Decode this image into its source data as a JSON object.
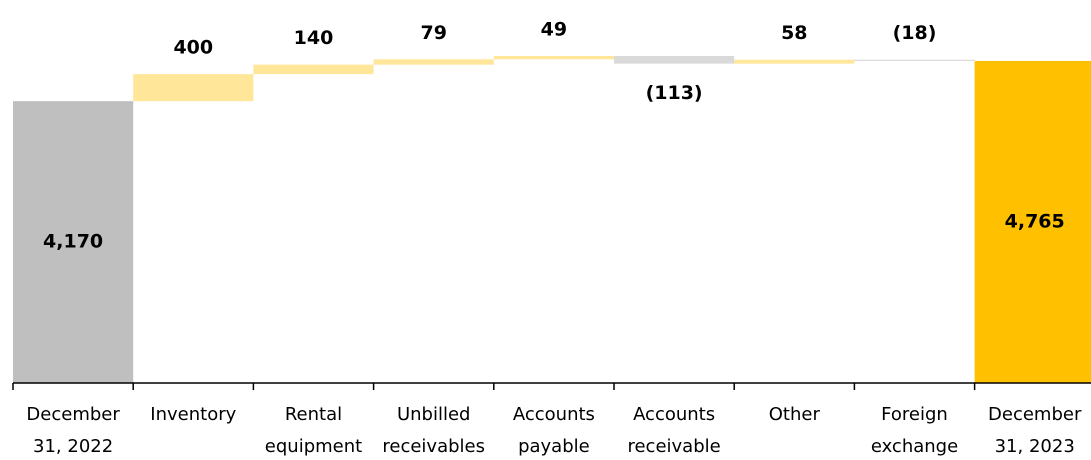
{
  "chart_data": {
    "type": "waterfall",
    "categories": [
      [
        "December",
        "31, 2022"
      ],
      [
        "Inventory"
      ],
      [
        "Rental",
        "equipment"
      ],
      [
        "Unbilled",
        "receivables"
      ],
      [
        "Accounts",
        "payable"
      ],
      [
        "Accounts",
        "receivable"
      ],
      [
        "Other"
      ],
      [
        "Foreign",
        "exchange"
      ],
      [
        "December",
        "31, 2023"
      ]
    ],
    "values": [
      4170,
      400,
      140,
      79,
      49,
      -113,
      58,
      -18,
      4765
    ],
    "value_labels": [
      "4,170",
      "400",
      "140",
      "79",
      "49",
      "(113)",
      "58",
      "(18)",
      "4,765"
    ],
    "measure": [
      "total",
      "relative",
      "relative",
      "relative",
      "relative",
      "relative",
      "relative",
      "relative",
      "total"
    ],
    "label_position": [
      "inside",
      "above",
      "above",
      "above",
      "above",
      "below",
      "above",
      "above",
      "inside"
    ],
    "colors": {
      "start": "#bfbfbf",
      "end": "#ffc000",
      "increase": "#ffe699",
      "decrease": "#d9d9d9"
    }
  }
}
